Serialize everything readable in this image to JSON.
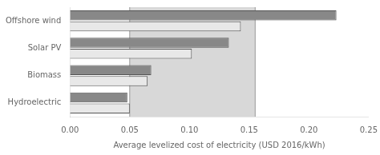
{
  "chart_data": {
    "type": "bar",
    "orientation": "horizontal",
    "categories": [
      "Offshore wind",
      "Solar PV",
      "Biomass",
      "Hydroelectric"
    ],
    "series": [
      {
        "color": "#888888",
        "values": [
          0.223,
          0.133,
          0.068,
          0.048
        ]
      },
      {
        "color": "#e8e8e8",
        "values": [
          0.143,
          0.102,
          0.065,
          0.05
        ]
      }
    ],
    "xlabel": "Average levelized cost of electricity (USD 2016/kWh)",
    "xlim": [
      0.0,
      0.25
    ],
    "xticks": [
      {
        "value": 0.0,
        "label": "0.00"
      },
      0.05,
      {
        "value": 0.1,
        "label": "0.10"
      },
      0.15,
      {
        "value": 0.2,
        "label": "0.20"
      },
      0.25
    ],
    "grid": false,
    "shade": {
      "range": [
        0.05,
        0.155
      ],
      "color": "#d8d8d8"
    },
    "vlines": {
      "values": [
        0.05,
        0.155
      ],
      "color": "#999999"
    }
  }
}
